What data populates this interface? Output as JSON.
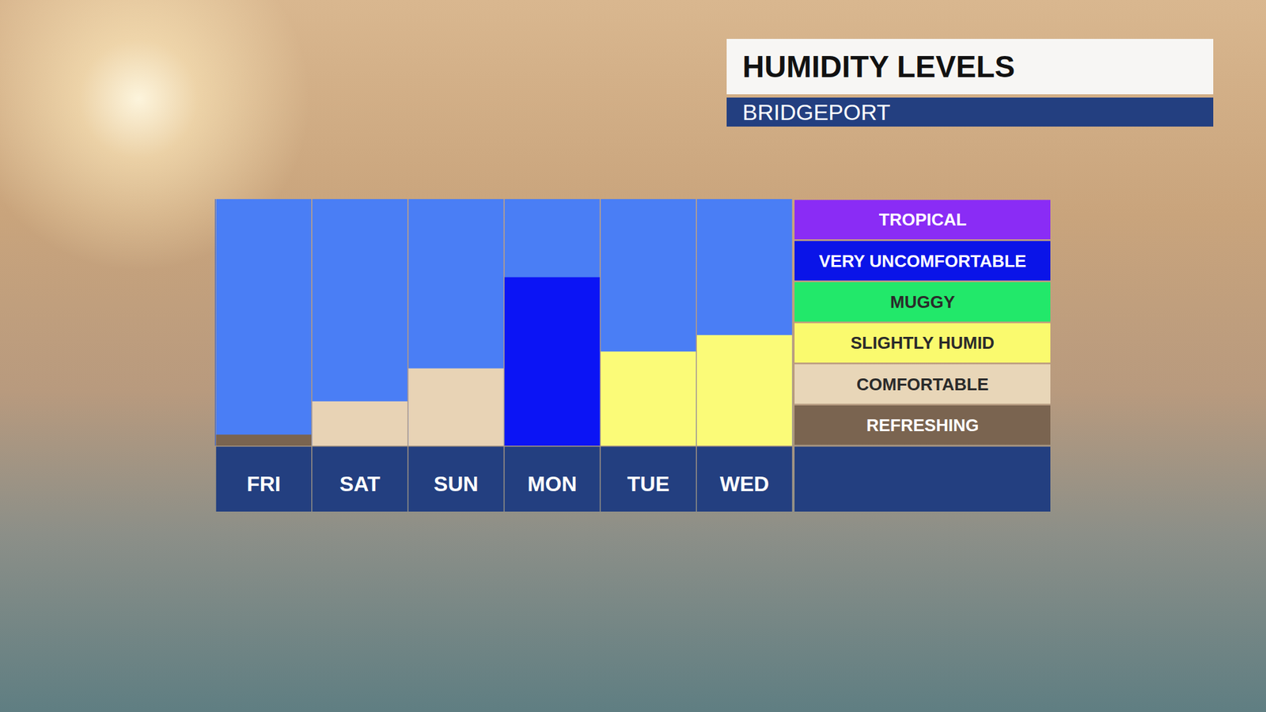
{
  "chart_data": {
    "type": "bar",
    "title": "HUMIDITY LEVELS",
    "subtitle": "BRIDGEPORT",
    "categories": [
      "FRI",
      "SAT",
      "SUN",
      "MON",
      "TUE",
      "WED"
    ],
    "values": [
      0.27,
      1.08,
      1.88,
      4.1,
      2.29,
      2.69
    ],
    "colors": [
      "#7a6450",
      "#e8d3b5",
      "#e8d3b5",
      "#0b14f5",
      "#fbfb78",
      "#fbfb78"
    ],
    "ylim": [
      0,
      6
    ],
    "yticks": [
      {
        "value": 0.5,
        "label": "REFRESHING",
        "color": "#7a6450"
      },
      {
        "value": 1.5,
        "label": "COMFORTABLE",
        "color": "#e8d6b8"
      },
      {
        "value": 2.5,
        "label": "SLIGHTLY HUMID",
        "color": "#fafa6e"
      },
      {
        "value": 3.5,
        "label": "MUGGY",
        "color": "#22e86a"
      },
      {
        "value": 4.5,
        "label": "VERY UNCOMFORTABLE",
        "color": "#0a14e8"
      },
      {
        "value": 5.5,
        "label": "TROPICAL",
        "color": "#8a2cf5"
      }
    ],
    "grid": false,
    "tick_labels": "x"
  }
}
